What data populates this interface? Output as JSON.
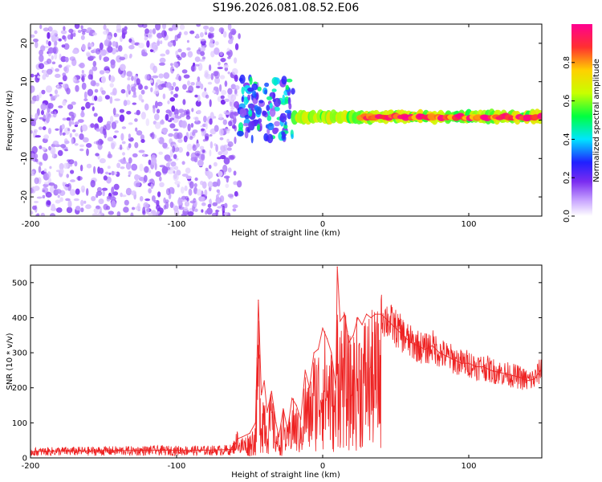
{
  "title": "S196.2026.081.08.52.E06",
  "chart_data": [
    {
      "type": "heatmap",
      "xlabel": "Height of straight line (km)",
      "ylabel": "Frequency (Hz)",
      "xlim": [
        -200,
        150
      ],
      "ylim": [
        -25,
        25
      ],
      "xticks": [
        -200,
        -100,
        0,
        100
      ],
      "xtick_labels": [
        "-200",
        "-100",
        "0",
        "100"
      ],
      "yticks": [
        -20,
        -10,
        0,
        10,
        20
      ],
      "ytick_labels": [
        "-20",
        "-10",
        "0",
        "10",
        "20"
      ],
      "colorbar": {
        "label": "Normalized spectral amplitude",
        "range": [
          0,
          1
        ],
        "ticks": [
          0,
          0.2,
          0.4,
          0.6,
          0.8
        ],
        "tick_labels": [
          "0.0",
          "0.2",
          "0.4",
          "0.6",
          "0.8"
        ],
        "colors": [
          "#ffffff",
          "#c9a6ff",
          "#7a2cf0",
          "#2020ff",
          "#00e5ff",
          "#00ff40",
          "#c8ff00",
          "#ffd000",
          "#ff3030",
          "#ff0090"
        ]
      },
      "features": [
        {
          "x_range": [
            -200,
            -57
          ],
          "freq_range": [
            -25,
            25
          ],
          "level": 0.12,
          "pattern": "scattered noise"
        },
        {
          "x_range": [
            -57,
            -20
          ],
          "freq_range": [
            -5,
            11
          ],
          "level": 0.25,
          "pattern": "patchy signal"
        },
        {
          "x_range": [
            -20,
            150
          ],
          "freq_center": 0.8,
          "half_width_hz": 1.5,
          "level": 0.65,
          "pattern": "continuous band"
        },
        {
          "x_range": [
            25,
            150
          ],
          "freq_center": 0.8,
          "half_width_hz": 0.7,
          "level": 0.9,
          "pattern": "band core"
        }
      ]
    },
    {
      "type": "line",
      "xlabel": "Height of straight line (km)",
      "ylabel": "SNR (10 * v/v)",
      "xlim": [
        -200,
        150
      ],
      "ylim": [
        0,
        550
      ],
      "xticks": [
        -200,
        -100,
        0,
        100
      ],
      "xtick_labels": [
        "-200",
        "-100",
        "0",
        "100"
      ],
      "yticks": [
        0,
        100,
        200,
        300,
        400,
        500
      ],
      "ytick_labels": [
        "0",
        "100",
        "200",
        "300",
        "400",
        "500"
      ],
      "color": "#ee2222",
      "x": [
        -200,
        -190,
        -180,
        -170,
        -160,
        -150,
        -140,
        -130,
        -120,
        -110,
        -100,
        -90,
        -80,
        -70,
        -62,
        -58,
        -55,
        -50,
        -46,
        -44,
        -42,
        -40,
        -38,
        -35,
        -32,
        -30,
        -27,
        -24,
        -21,
        -18,
        -15,
        -12,
        -9,
        -6,
        -3,
        0,
        3,
        6,
        9,
        10,
        12,
        15,
        18,
        21,
        24,
        27,
        30,
        33,
        36,
        40,
        45,
        50,
        55,
        60,
        65,
        70,
        75,
        80,
        85,
        90,
        95,
        100,
        105,
        110,
        115,
        120,
        125,
        130,
        135,
        140,
        145,
        150
      ],
      "y": [
        18,
        19,
        20,
        20,
        20,
        21,
        21,
        21,
        22,
        22,
        22,
        22,
        22,
        23,
        24,
        55,
        60,
        70,
        100,
        450,
        180,
        220,
        130,
        190,
        100,
        60,
        140,
        80,
        170,
        150,
        110,
        250,
        200,
        300,
        310,
        370,
        340,
        300,
        200,
        545,
        390,
        410,
        330,
        350,
        400,
        380,
        410,
        400,
        410,
        410,
        390,
        370,
        350,
        330,
        320,
        310,
        320,
        300,
        290,
        280,
        270,
        270,
        260,
        260,
        250,
        245,
        240,
        235,
        230,
        220,
        225,
        255
      ]
    }
  ]
}
